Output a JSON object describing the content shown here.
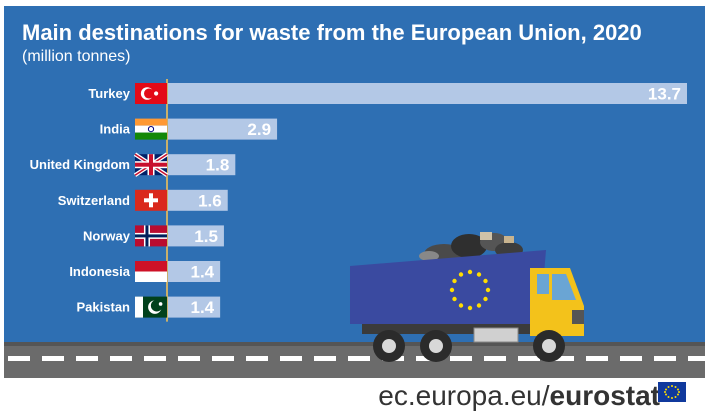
{
  "title": "Main destinations for waste from the European Union, 2020",
  "subtitle": "(million tonnes)",
  "source": {
    "domain": "ec.europa.eu/",
    "brand": "eurostat"
  },
  "colors": {
    "background": "#2e6fb3",
    "bar": "#b3c8e6",
    "value_text": "#ffffff",
    "truck_cargo": "#3a4aa0",
    "truck_cab": "#f3c21b"
  },
  "chart_data": {
    "type": "bar",
    "orientation": "horizontal",
    "title": "Main destinations for waste from the European Union, 2020",
    "subtitle": "(million tonnes)",
    "categories": [
      "Turkey",
      "India",
      "United Kingdom",
      "Switzerland",
      "Norway",
      "Indonesia",
      "Pakistan"
    ],
    "values": [
      13.7,
      2.9,
      1.8,
      1.6,
      1.5,
      1.4,
      1.4
    ],
    "value_labels": [
      "13.7",
      "2.9",
      "1.8",
      "1.6",
      "1.5",
      "1.4",
      "1.4"
    ],
    "flags": [
      "turkey-flag-icon",
      "india-flag-icon",
      "united-kingdom-flag-icon",
      "switzerland-flag-icon",
      "norway-flag-icon",
      "indonesia-flag-icon",
      "pakistan-flag-icon"
    ],
    "xlabel": "",
    "ylabel": "",
    "xlim": [
      0,
      13.7
    ],
    "grid": false,
    "legend": "none"
  }
}
